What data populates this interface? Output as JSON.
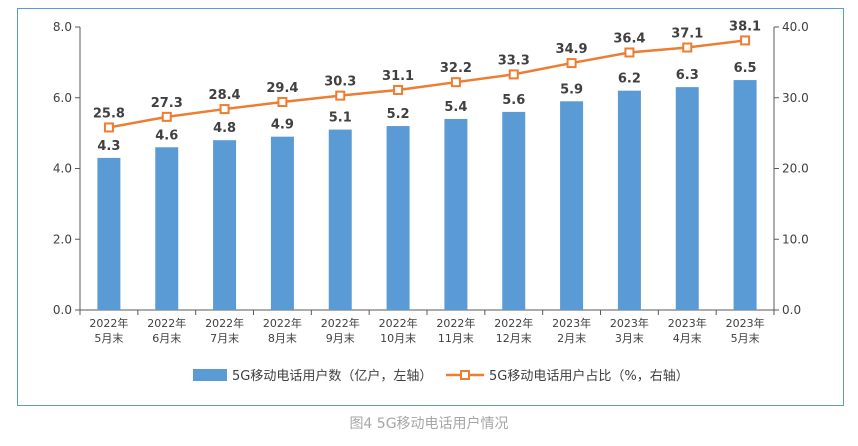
{
  "chart_data": {
    "type": "bar",
    "categories": [
      [
        "2022年",
        "5月末"
      ],
      [
        "2022年",
        "6月末"
      ],
      [
        "2022年",
        "7月末"
      ],
      [
        "2022年",
        "8月末"
      ],
      [
        "2022年",
        "9月末"
      ],
      [
        "2022年",
        "10月末"
      ],
      [
        "2022年",
        "11月末"
      ],
      [
        "2022年",
        "12月末"
      ],
      [
        "2023年",
        "2月末"
      ],
      [
        "2023年",
        "3月末"
      ],
      [
        "2023年",
        "4月末"
      ],
      [
        "2023年",
        "5月末"
      ]
    ],
    "series": [
      {
        "name": "5G移动电话用户数（亿户，左轴）",
        "type": "bar",
        "axis": "left",
        "color": "#5b9bd5",
        "values": [
          4.3,
          4.6,
          4.8,
          4.9,
          5.1,
          5.2,
          5.4,
          5.6,
          5.9,
          6.2,
          6.3,
          6.5
        ]
      },
      {
        "name": "5G移动电话用户占比（%，右轴）",
        "type": "line",
        "axis": "right",
        "color": "#ed7d31",
        "marker": "square",
        "values": [
          25.8,
          27.3,
          28.4,
          29.4,
          30.3,
          31.1,
          32.2,
          33.3,
          34.9,
          36.4,
          37.1,
          38.1
        ]
      }
    ],
    "y_left": {
      "lim": [
        0,
        8
      ],
      "ticks": [
        "0.0",
        "2.0",
        "4.0",
        "6.0",
        "8.0"
      ]
    },
    "y_right": {
      "lim": [
        0,
        40
      ],
      "ticks": [
        "0.0",
        "10.0",
        "20.0",
        "30.0",
        "40.0"
      ]
    },
    "legend": "bottom",
    "grid": false
  },
  "caption": "图4 5G移动电话用户情况"
}
